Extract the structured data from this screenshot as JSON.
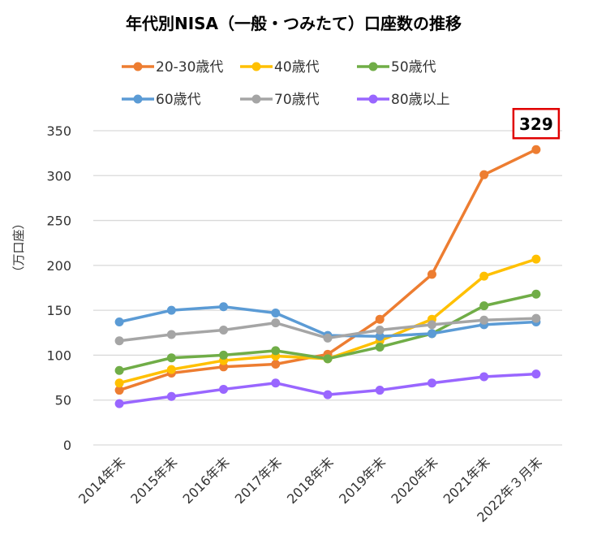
{
  "chart_data": {
    "type": "line",
    "title": "年代別NISA（一般・つみたて）口座数の推移",
    "ylabel": "（万口座）",
    "xlabel": "",
    "ylim": [
      0,
      350
    ],
    "yticks": [
      0,
      50,
      100,
      150,
      200,
      250,
      300,
      350
    ],
    "grid": true,
    "legend_position": "top",
    "categories": [
      "2014年末",
      "2015年末",
      "2016年末",
      "2017年末",
      "2018年末",
      "2019年末",
      "2020年末",
      "2021年末",
      "2022年３月末"
    ],
    "series": [
      {
        "name": "20-30歳代",
        "color": "#ED7D31",
        "values": [
          61,
          80,
          87,
          90,
          101,
          140,
          190,
          301,
          329
        ]
      },
      {
        "name": "40歳代",
        "color": "#FFC000",
        "values": [
          69,
          84,
          94,
          99,
          96,
          116,
          140,
          188,
          207
        ]
      },
      {
        "name": "50歳代",
        "color": "#70AD47",
        "values": [
          83,
          97,
          100,
          105,
          96,
          109,
          124,
          155,
          168
        ]
      },
      {
        "name": "60歳代",
        "color": "#5B9BD5",
        "values": [
          137,
          150,
          154,
          147,
          122,
          121,
          124,
          134,
          137
        ]
      },
      {
        "name": "70歳代",
        "color": "#A5A5A5",
        "values": [
          116,
          123,
          128,
          136,
          119,
          128,
          134,
          139,
          141
        ]
      },
      {
        "name": "80歳以上",
        "color": "#9966FF",
        "values": [
          46,
          54,
          62,
          69,
          56,
          61,
          69,
          76,
          79
        ]
      }
    ],
    "annotations": [
      {
        "text": "329",
        "series": "20-30歳代",
        "category": "2022年３月末",
        "border_color": "#E00000"
      }
    ]
  }
}
